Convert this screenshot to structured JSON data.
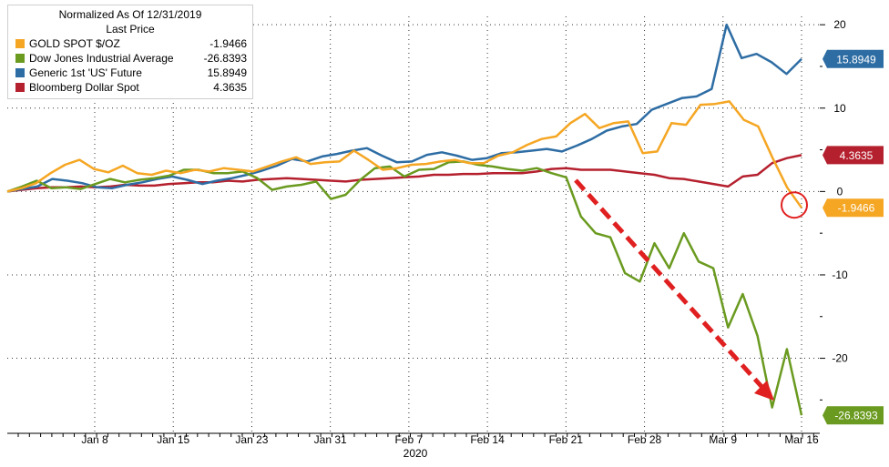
{
  "chart_data": {
    "type": "line",
    "title": "Normalized As Of 12/31/2019",
    "subtitle": "Last Price",
    "xlabel": "2020",
    "x_ticks": [
      "Jan 8",
      "Jan 15",
      "Jan 23",
      "Jan 31",
      "Feb 7",
      "Feb 14",
      "Feb 21",
      "Feb 28",
      "Mar 9",
      "Mar 16"
    ],
    "y_ticks": [
      20,
      10,
      0,
      -10,
      -20
    ],
    "ylim": [
      -29,
      21
    ],
    "grid": true,
    "legend_position": "top-left",
    "y_axis_position": "right",
    "series": [
      {
        "name": "GOLD SPOT $/OZ",
        "last_value": "-1.9466",
        "color": "#f5a623",
        "values": [
          0,
          0.4,
          1.0,
          2.2,
          3.2,
          3.8,
          2.7,
          2.3,
          3.1,
          2.2,
          2.0,
          2.5,
          2.2,
          2.6,
          2.4,
          2.8,
          2.6,
          2.4,
          3.0,
          3.6,
          4.1,
          3.3,
          3.5,
          3.6,
          4.9,
          3.8,
          2.6,
          2.8,
          3.2,
          3.3,
          3.6,
          3.8,
          3.4,
          3.4,
          4.3,
          4.7,
          5.6,
          6.3,
          6.6,
          8.2,
          9.3,
          7.6,
          8.2,
          8.4,
          4.6,
          4.8,
          8.2,
          8.0,
          10.4,
          10.5,
          10.8,
          8.6,
          7.8,
          4.0,
          0.5,
          -1.9466
        ]
      },
      {
        "name": "Dow Jones Industrial Average",
        "last_value": "-26.8393",
        "color": "#6a9a1f",
        "values": [
          0,
          0.6,
          1.3,
          0.4,
          0.5,
          0.3,
          0.9,
          1.5,
          1.1,
          1.4,
          1.6,
          1.9,
          2.6,
          2.6,
          2.2,
          2.2,
          2.4,
          1.6,
          0.2,
          0.6,
          0.8,
          1.2,
          -0.9,
          -0.4,
          1.4,
          2.8,
          3.0,
          1.8,
          2.6,
          2.7,
          3.5,
          3.6,
          3.2,
          3.0,
          2.7,
          2.5,
          2.8,
          2.2,
          1.7,
          -3.0,
          -5.0,
          -5.5,
          -9.8,
          -10.8,
          -6.2,
          -9.2,
          -5.0,
          -8.4,
          -9.2,
          -16.3,
          -12.3,
          -17.3,
          -25.9,
          -18.9,
          -26.8393
        ]
      },
      {
        "name": "Generic 1st 'US' Future",
        "last_value": "15.8949",
        "color": "#2e6da4",
        "values": [
          0,
          0.3,
          0.6,
          1.5,
          1.3,
          1.0,
          0.5,
          0.4,
          0.8,
          1.1,
          1.5,
          1.8,
          1.4,
          0.9,
          1.3,
          1.6,
          2.0,
          2.5,
          3.1,
          3.9,
          3.6,
          4.2,
          4.5,
          4.9,
          5.2,
          4.3,
          3.5,
          3.6,
          4.4,
          4.7,
          4.3,
          3.8,
          4.0,
          4.6,
          4.7,
          4.9,
          5.1,
          4.8,
          5.5,
          6.3,
          7.3,
          7.8,
          8.1,
          9.8,
          10.5,
          11.2,
          11.4,
          12.3,
          20.0,
          16.0,
          16.5,
          15.5,
          14.1,
          15.8949
        ]
      },
      {
        "name": "Bloomberg Dollar Spot",
        "last_value": "4.3635",
        "color": "#b5202e",
        "values": [
          0,
          0.2,
          0.4,
          0.5,
          0.5,
          0.6,
          0.5,
          0.6,
          0.8,
          0.7,
          0.7,
          0.9,
          1.0,
          1.1,
          1.1,
          1.3,
          1.2,
          1.4,
          1.5,
          1.6,
          1.5,
          1.4,
          1.3,
          1.2,
          1.4,
          1.5,
          1.6,
          1.7,
          1.8,
          2.0,
          2.0,
          2.1,
          2.1,
          2.2,
          2.2,
          2.2,
          2.4,
          2.7,
          2.8,
          2.6,
          2.6,
          2.6,
          2.4,
          2.2,
          2.0,
          1.6,
          1.5,
          1.2,
          0.9,
          0.6,
          1.8,
          2.0,
          3.4,
          4.0,
          4.3635
        ]
      }
    ],
    "annotations": [
      {
        "type": "circle",
        "near": "GOLD SPOT $/OZ last value"
      },
      {
        "type": "dashed-arrow",
        "color": "#e02020",
        "from": "Feb 21",
        "to": "Mar 16"
      }
    ]
  }
}
